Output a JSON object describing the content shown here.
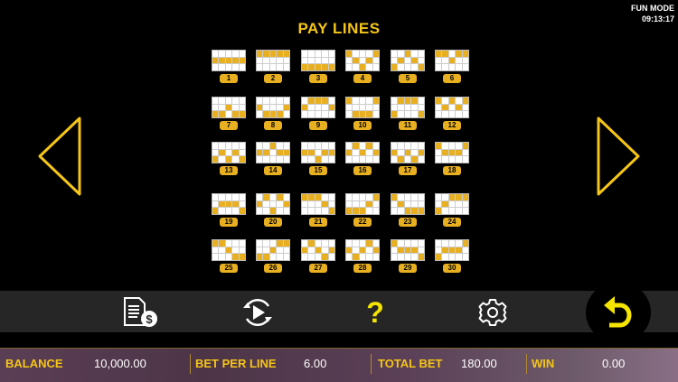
{
  "status": {
    "mode": "FUN MODE",
    "time": "09:13:17"
  },
  "title": "PAY LINES",
  "colors": {
    "accent": "#f5c518",
    "payline_cell": "#e8b020"
  },
  "paylines": [
    {
      "number": "1",
      "rows": [
        1,
        1,
        1,
        1,
        1
      ]
    },
    {
      "number": "2",
      "rows": [
        0,
        0,
        0,
        0,
        0
      ]
    },
    {
      "number": "3",
      "rows": [
        2,
        2,
        2,
        2,
        2
      ]
    },
    {
      "number": "4",
      "rows": [
        0,
        1,
        2,
        1,
        0
      ]
    },
    {
      "number": "5",
      "rows": [
        2,
        1,
        0,
        1,
        2
      ]
    },
    {
      "number": "6",
      "rows": [
        0,
        0,
        1,
        0,
        0
      ]
    },
    {
      "number": "7",
      "rows": [
        2,
        2,
        1,
        2,
        2
      ]
    },
    {
      "number": "8",
      "rows": [
        1,
        2,
        2,
        2,
        1
      ]
    },
    {
      "number": "9",
      "rows": [
        1,
        0,
        0,
        0,
        1
      ]
    },
    {
      "number": "10",
      "rows": [
        0,
        2,
        2,
        2,
        0
      ]
    },
    {
      "number": "11",
      "rows": [
        2,
        0,
        0,
        0,
        2
      ]
    },
    {
      "number": "12",
      "rows": [
        0,
        1,
        0,
        1,
        0
      ]
    },
    {
      "number": "13",
      "rows": [
        2,
        1,
        2,
        1,
        2
      ]
    },
    {
      "number": "14",
      "rows": [
        1,
        1,
        0,
        1,
        1
      ]
    },
    {
      "number": "15",
      "rows": [
        1,
        1,
        2,
        1,
        1
      ]
    },
    {
      "number": "16",
      "rows": [
        1,
        0,
        1,
        0,
        1
      ]
    },
    {
      "number": "17",
      "rows": [
        1,
        2,
        1,
        2,
        1
      ]
    },
    {
      "number": "18",
      "rows": [
        0,
        1,
        1,
        1,
        0
      ]
    },
    {
      "number": "19",
      "rows": [
        2,
        1,
        1,
        1,
        2
      ]
    },
    {
      "number": "20",
      "rows": [
        1,
        0,
        2,
        0,
        1
      ]
    },
    {
      "number": "21",
      "rows": [
        0,
        0,
        0,
        1,
        2
      ]
    },
    {
      "number": "22",
      "rows": [
        2,
        2,
        2,
        1,
        0
      ]
    },
    {
      "number": "23",
      "rows": [
        0,
        1,
        2,
        2,
        2
      ]
    },
    {
      "number": "24",
      "rows": [
        2,
        1,
        0,
        0,
        0
      ]
    },
    {
      "number": "25",
      "rows": [
        0,
        0,
        1,
        2,
        2
      ]
    },
    {
      "number": "26",
      "rows": [
        2,
        2,
        1,
        0,
        0
      ]
    },
    {
      "number": "27",
      "rows": [
        1,
        0,
        1,
        2,
        1
      ]
    },
    {
      "number": "28",
      "rows": [
        1,
        2,
        1,
        0,
        1
      ]
    },
    {
      "number": "29",
      "rows": [
        0,
        1,
        1,
        1,
        2
      ]
    },
    {
      "number": "30",
      "rows": [
        2,
        1,
        1,
        1,
        0
      ]
    }
  ],
  "toolbar": {
    "icons": [
      "paytable-icon",
      "autoplay-icon",
      "help-icon",
      "settings-icon",
      "back-icon"
    ],
    "help_glyph": "?"
  },
  "footer": {
    "balance_label": "BALANCE",
    "balance_value": "10,000.00",
    "bet_per_line_label": "BET PER LINE",
    "bet_per_line_value": "6.00",
    "total_bet_label": "TOTAL BET",
    "total_bet_value": "180.00",
    "win_label": "WIN",
    "win_value": "0.00"
  }
}
